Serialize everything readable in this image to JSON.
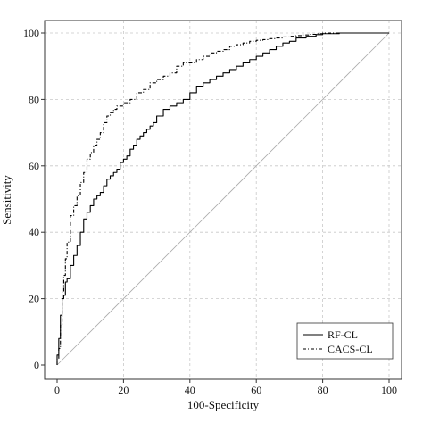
{
  "chart_data": {
    "type": "line",
    "xlabel": "100-Specificity",
    "ylabel": "Sensitivity",
    "xlim": [
      0,
      100
    ],
    "ylim": [
      0,
      100
    ],
    "x_ticks": [
      0,
      20,
      40,
      60,
      80,
      100
    ],
    "y_ticks": [
      0,
      20,
      40,
      60,
      80,
      100
    ],
    "grid": true,
    "legend_position": "bottom-right",
    "reference_line": {
      "x": [
        0,
        100
      ],
      "y": [
        0,
        100
      ]
    },
    "series": [
      {
        "name": "RF-CL",
        "line_style": "solid",
        "x": [
          0,
          0.5,
          1,
          1.5,
          2,
          2.5,
          3,
          4,
          5,
          6,
          7,
          8,
          9,
          10,
          11,
          12,
          13,
          14,
          15,
          16,
          17,
          18,
          19,
          20,
          21,
          22,
          23,
          24,
          25,
          26,
          27,
          28,
          29,
          30,
          32,
          34,
          36,
          38,
          40,
          42,
          44,
          46,
          48,
          50,
          52,
          54,
          56,
          58,
          60,
          62,
          64,
          66,
          68,
          70,
          72,
          75,
          78,
          80,
          85,
          90,
          95,
          100
        ],
        "y": [
          0,
          3,
          8,
          15,
          20,
          21,
          25,
          26,
          30,
          33,
          36,
          40,
          44,
          46,
          48,
          50,
          51,
          52,
          54,
          56,
          57,
          58,
          59,
          61,
          62,
          63,
          65,
          66,
          68,
          69,
          70,
          71,
          72,
          73,
          75,
          77,
          78,
          79,
          80,
          82,
          84,
          85,
          86,
          87,
          88,
          89,
          90,
          91,
          92,
          93,
          94,
          95,
          96,
          97,
          97.5,
          98.5,
          99,
          99.5,
          99.8,
          100,
          100,
          100
        ]
      },
      {
        "name": "CACS-CL",
        "line_style": "dash-dot",
        "x": [
          0,
          0.5,
          1,
          1.5,
          2,
          2.5,
          3,
          4,
          5,
          6,
          7,
          8,
          9,
          10,
          11,
          12,
          13,
          14,
          15,
          16,
          17,
          18,
          20,
          22,
          24,
          26,
          28,
          30,
          32,
          34,
          36,
          38,
          40,
          42,
          44,
          46,
          48,
          50,
          52,
          54,
          56,
          58,
          60,
          62,
          64,
          66,
          68,
          70,
          72,
          74,
          76,
          78,
          80,
          85,
          90,
          95,
          100
        ],
        "y": [
          0,
          2,
          5,
          12,
          22,
          27,
          32,
          37,
          45,
          48,
          51,
          55,
          58,
          62,
          64,
          66,
          68,
          70,
          73,
          75,
          76,
          77,
          78,
          79,
          80,
          82,
          83,
          85,
          86,
          87,
          88,
          90,
          91,
          91,
          92,
          93,
          94,
          94.5,
          95,
          96,
          96.5,
          97,
          97.5,
          97.8,
          98,
          98.3,
          98.5,
          98.8,
          99,
          99.2,
          99.4,
          99.6,
          99.8,
          100,
          100,
          100,
          100
        ]
      }
    ]
  }
}
